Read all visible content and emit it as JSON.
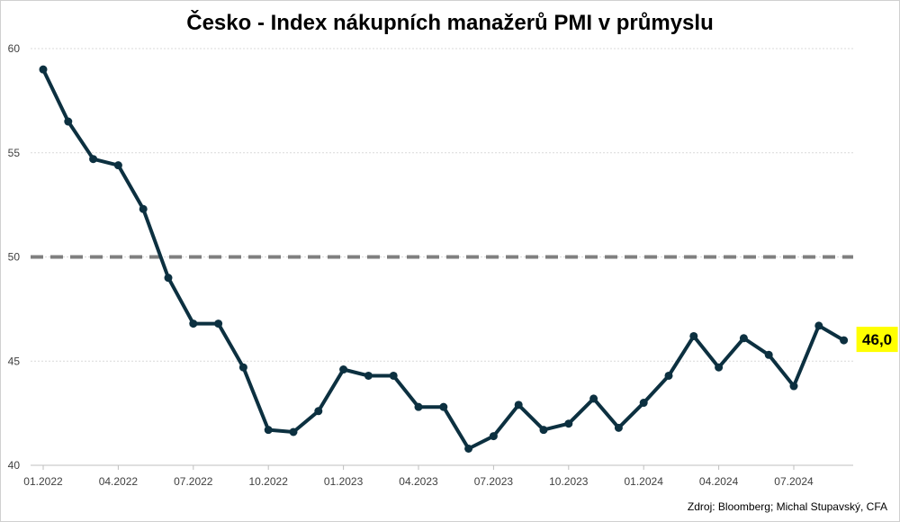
{
  "chart_data": {
    "type": "line",
    "title": "Česko - Index nákupních manažerů PMI v průmyslu",
    "source": "Zdroj: Bloomberg; Michal Stupavský, CFA",
    "ylim": [
      40,
      60
    ],
    "yticks": [
      "40",
      "45",
      "50",
      "55",
      "60"
    ],
    "yticks_values": [
      40,
      45,
      50,
      55,
      60
    ],
    "xtick_labels": [
      "01.2022",
      "04.2022",
      "07.2022",
      "10.2022",
      "01.2023",
      "04.2023",
      "07.2023",
      "10.2023",
      "01.2024",
      "04.2024",
      "07.2024"
    ],
    "x": [
      "01.2022",
      "02.2022",
      "03.2022",
      "04.2022",
      "05.2022",
      "06.2022",
      "07.2022",
      "08.2022",
      "09.2022",
      "10.2022",
      "11.2022",
      "12.2022",
      "01.2023",
      "02.2023",
      "03.2023",
      "04.2023",
      "05.2023",
      "06.2023",
      "07.2023",
      "08.2023",
      "09.2023",
      "10.2023",
      "11.2023",
      "12.2023",
      "01.2024",
      "02.2024",
      "03.2024",
      "04.2024",
      "05.2024",
      "06.2024",
      "07.2024",
      "08.2024",
      "09.2024"
    ],
    "values": [
      59.0,
      56.5,
      54.7,
      54.4,
      52.3,
      49.0,
      46.8,
      46.8,
      44.7,
      41.7,
      41.6,
      42.6,
      44.6,
      44.3,
      44.3,
      42.8,
      42.8,
      40.8,
      41.4,
      42.9,
      41.7,
      42.0,
      43.2,
      41.8,
      43.0,
      44.3,
      46.2,
      44.7,
      46.1,
      45.3,
      43.8,
      46.7,
      46.0
    ],
    "reference_line": 50,
    "last_value_label": "46,0",
    "grid": true,
    "colors": {
      "line": "#0c3040",
      "reference": "#7f7f7f",
      "grid": "#d9d9d9",
      "highlight": "#ffff00"
    }
  }
}
